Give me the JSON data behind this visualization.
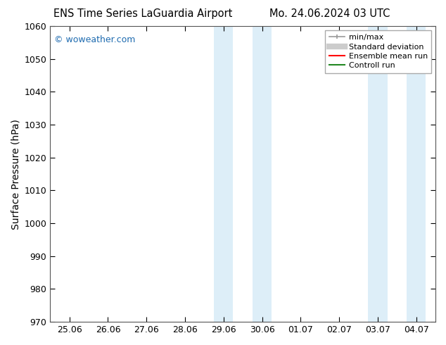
{
  "title_left": "ENS Time Series LaGuardia Airport",
  "title_right": "Mo. 24.06.2024 03 UTC",
  "ylabel": "Surface Pressure (hPa)",
  "ylim": [
    970,
    1060
  ],
  "yticks": [
    970,
    980,
    990,
    1000,
    1010,
    1020,
    1030,
    1040,
    1050,
    1060
  ],
  "xtick_labels": [
    "25.06",
    "26.06",
    "27.06",
    "28.06",
    "29.06",
    "30.06",
    "01.07",
    "02.07",
    "03.07",
    "04.07"
  ],
  "xtick_positions": [
    0,
    1,
    2,
    3,
    4,
    5,
    6,
    7,
    8,
    9
  ],
  "xlim": [
    -0.5,
    9.5
  ],
  "shaded_bands": [
    {
      "x_start": 3.75,
      "x_end": 4.25,
      "color": "#ddeef8"
    },
    {
      "x_start": 4.75,
      "x_end": 5.25,
      "color": "#ddeef8"
    },
    {
      "x_start": 7.75,
      "x_end": 8.25,
      "color": "#ddeef8"
    },
    {
      "x_start": 8.75,
      "x_end": 9.25,
      "color": "#ddeef8"
    }
  ],
  "watermark_text": "© woweather.com",
  "watermark_color": "#1e6bb0",
  "background_color": "#ffffff",
  "legend_entries": [
    {
      "label": "min/max",
      "color": "#aaaaaa",
      "lw": 1.2
    },
    {
      "label": "Standard deviation",
      "color": "#cccccc",
      "lw": 6
    },
    {
      "label": "Ensemble mean run",
      "color": "#ff0000",
      "lw": 1.5
    },
    {
      "label": "Controll run",
      "color": "#228822",
      "lw": 1.5
    }
  ],
  "title_fontsize": 10.5,
  "tick_fontsize": 9,
  "ylabel_fontsize": 10,
  "legend_fontsize": 8
}
